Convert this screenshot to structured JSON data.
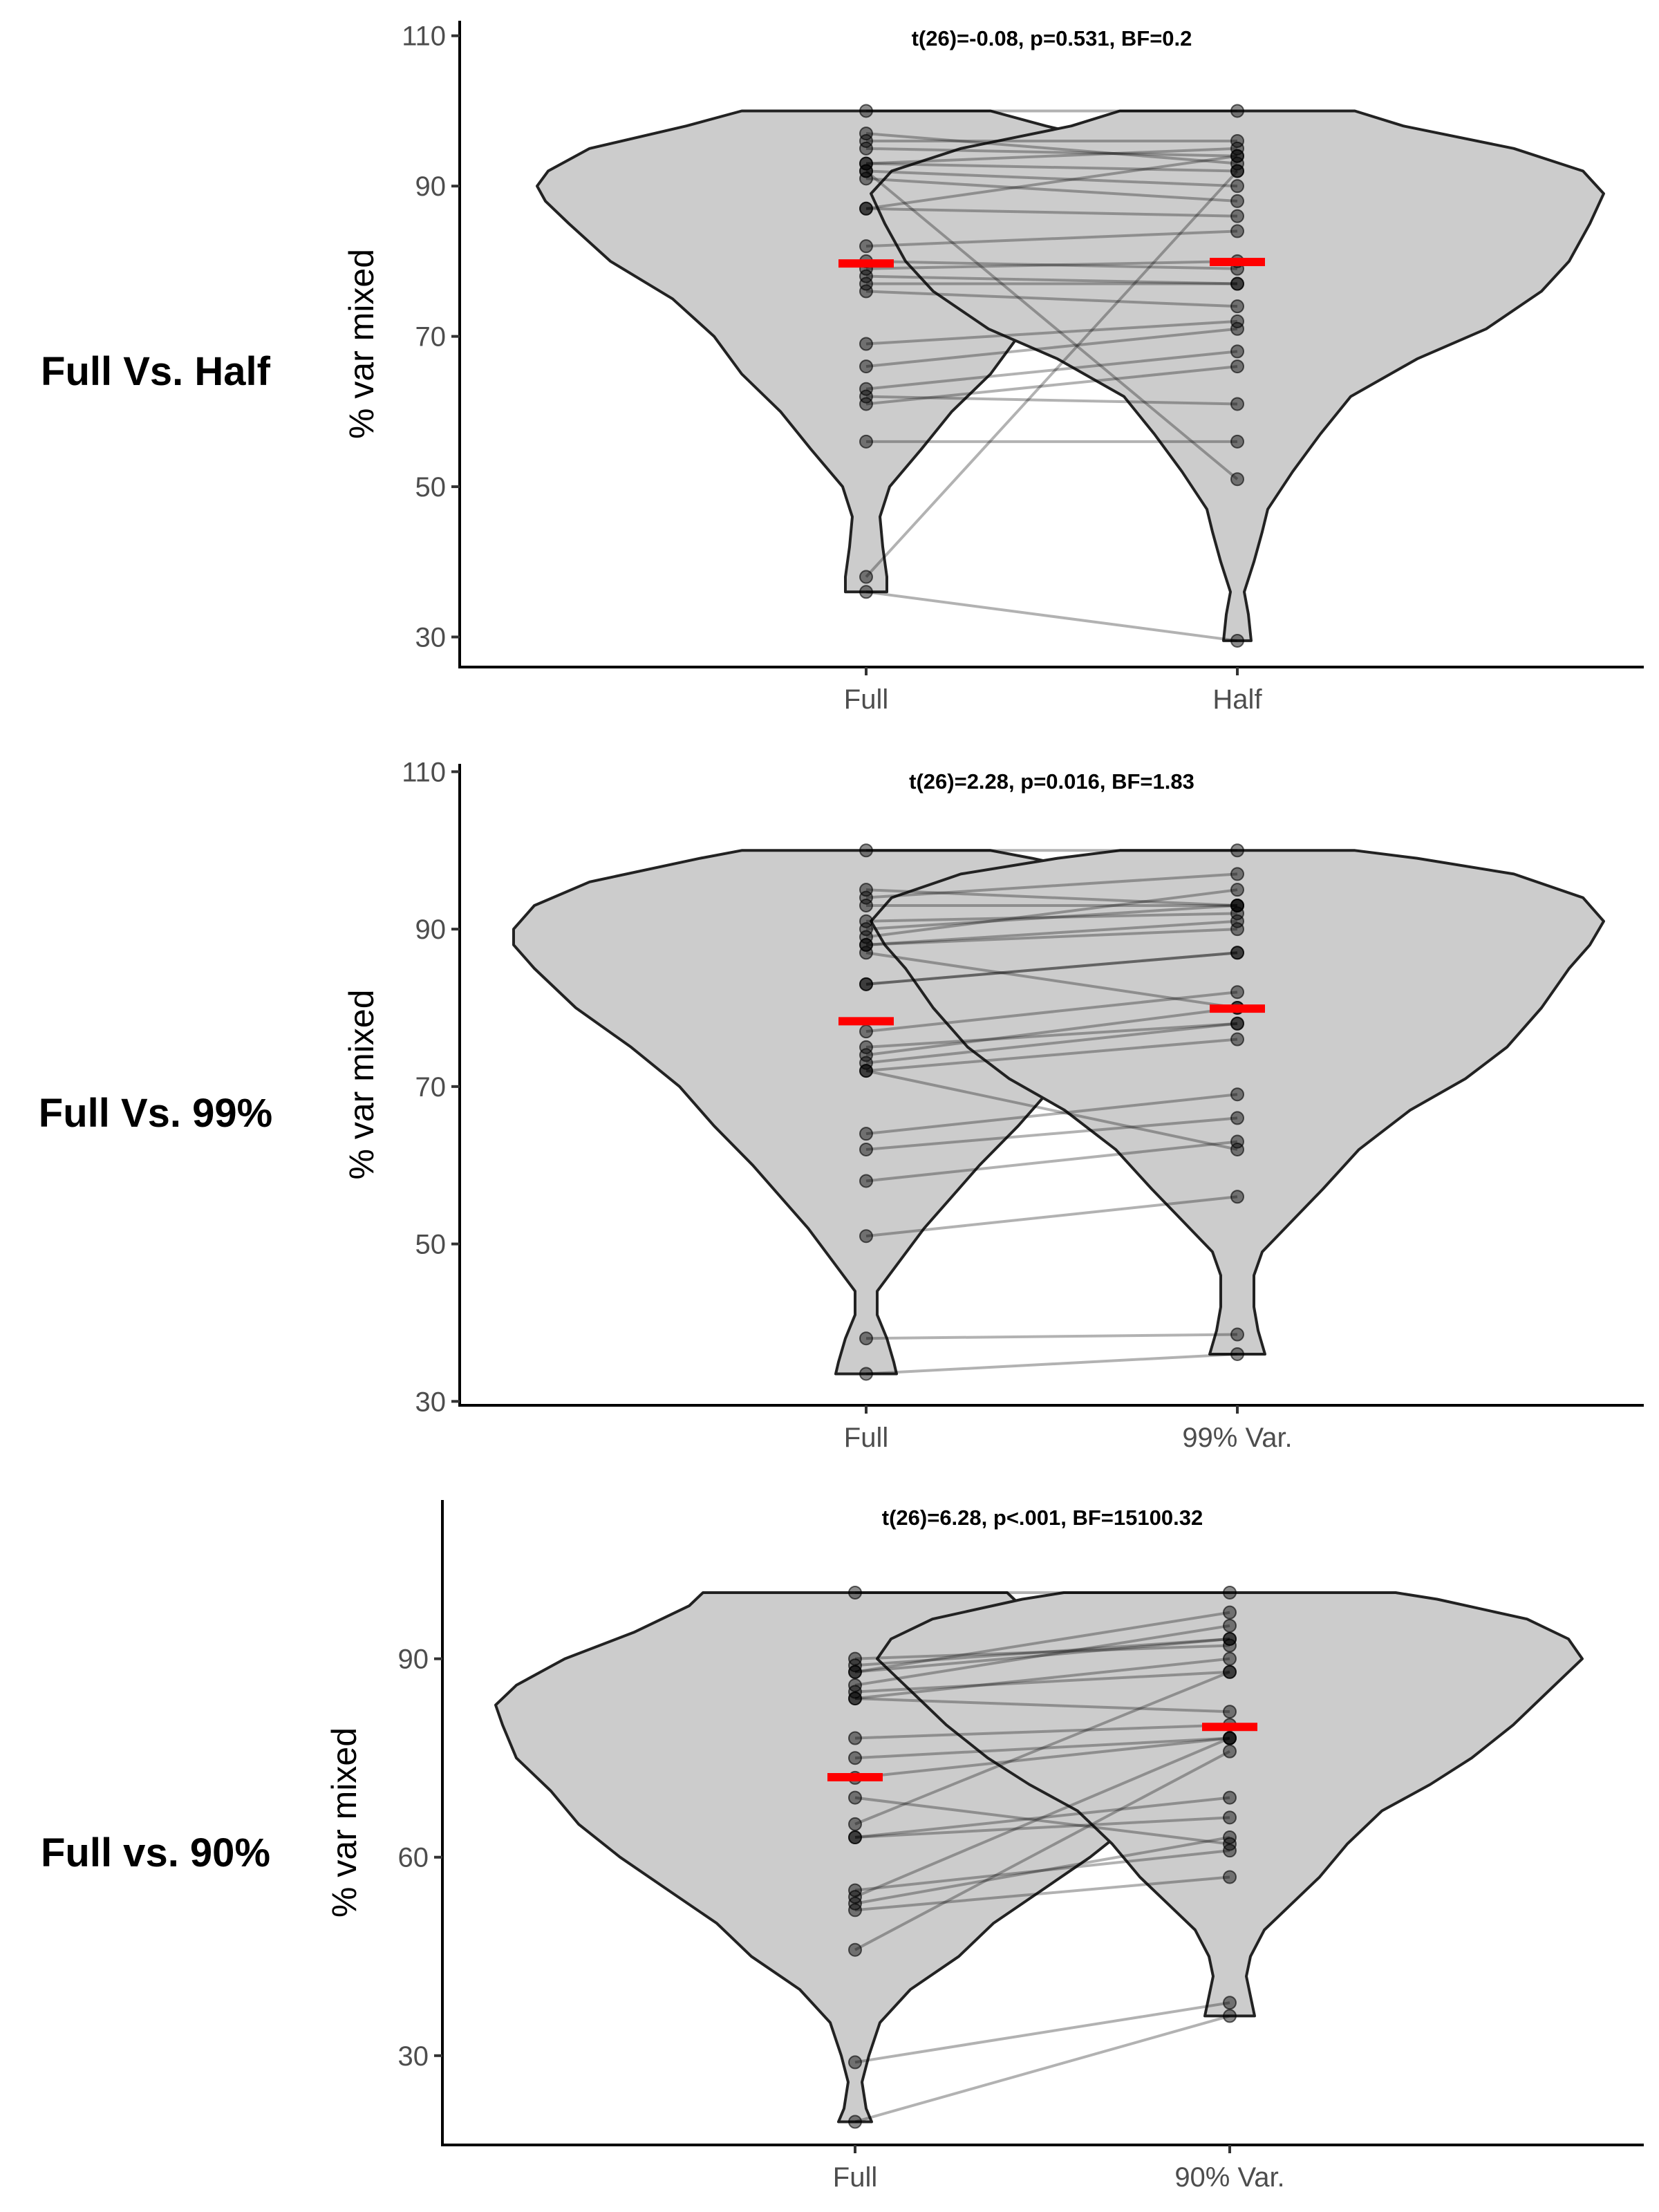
{
  "chart_data": [
    {
      "type": "violin",
      "row_label": "Full Vs. Half",
      "annotation": "t(26)=-0.08, p=0.531, BF=0.2",
      "ylabel": "% var mixed",
      "xlabel": "",
      "categories": [
        "Full",
        "Half"
      ],
      "ylim": [
        26,
        112
      ],
      "yticks": [
        30,
        50,
        70,
        90,
        110
      ],
      "ytick_labels": [
        "30",
        "50",
        "70",
        "90",
        "110"
      ],
      "means": [
        79.7,
        79.9
      ],
      "violin_profiles": [
        [
          [
            36,
            0.15
          ],
          [
            38,
            0.15
          ],
          [
            42,
            0.12
          ],
          [
            46,
            0.1
          ],
          [
            50,
            0.17
          ],
          [
            55,
            0.4
          ],
          [
            60,
            0.62
          ],
          [
            65,
            0.9
          ],
          [
            70,
            1.1
          ],
          [
            75,
            1.4
          ],
          [
            80,
            1.85
          ],
          [
            85,
            2.15
          ],
          [
            88,
            2.32
          ],
          [
            90,
            2.38
          ],
          [
            92,
            2.3
          ],
          [
            95,
            2.0
          ],
          [
            98,
            1.3
          ],
          [
            100,
            0.9
          ]
        ],
        [
          [
            29.5,
            0.1
          ],
          [
            33,
            0.08
          ],
          [
            36,
            0.05
          ],
          [
            40,
            0.12
          ],
          [
            44,
            0.18
          ],
          [
            47,
            0.22
          ],
          [
            52,
            0.4
          ],
          [
            57,
            0.6
          ],
          [
            62,
            0.82
          ],
          [
            67,
            1.3
          ],
          [
            71,
            1.8
          ],
          [
            76,
            2.2
          ],
          [
            80,
            2.4
          ],
          [
            85,
            2.55
          ],
          [
            89,
            2.65
          ],
          [
            92,
            2.5
          ],
          [
            95,
            2.0
          ],
          [
            98,
            1.2
          ],
          [
            100,
            0.85
          ]
        ]
      ],
      "paired_values": [
        [
          100,
          100
        ],
        [
          97,
          93
        ],
        [
          96,
          96
        ],
        [
          95,
          94
        ],
        [
          93,
          95
        ],
        [
          93,
          92
        ],
        [
          92,
          90
        ],
        [
          92,
          51
        ],
        [
          91,
          88
        ],
        [
          87,
          94
        ],
        [
          87,
          86
        ],
        [
          82,
          84
        ],
        [
          80,
          79
        ],
        [
          79,
          80
        ],
        [
          78,
          77
        ],
        [
          77,
          77
        ],
        [
          76,
          74
        ],
        [
          69,
          72
        ],
        [
          66,
          71
        ],
        [
          63,
          68
        ],
        [
          62,
          61
        ],
        [
          61,
          66
        ],
        [
          56,
          56
        ],
        [
          38,
          92
        ],
        [
          36,
          29.5
        ]
      ]
    },
    {
      "type": "violin",
      "row_label": "Full Vs. 99%",
      "annotation": "t(26)=2.28, p=0.016, BF=1.83",
      "ylabel": "% var mixed",
      "xlabel": "",
      "categories": [
        "Full",
        "99% Var."
      ],
      "ylim": [
        29.5,
        111
      ],
      "yticks": [
        30,
        50,
        70,
        90,
        110
      ],
      "ytick_labels": [
        "30",
        "50",
        "70",
        "90",
        "110"
      ],
      "means": [
        78.3,
        79.9
      ],
      "violin_profiles": [
        [
          [
            33.5,
            0.22
          ],
          [
            35,
            0.2
          ],
          [
            38,
            0.15
          ],
          [
            41,
            0.08
          ],
          [
            44,
            0.08
          ],
          [
            48,
            0.25
          ],
          [
            52,
            0.42
          ],
          [
            56,
            0.62
          ],
          [
            60,
            0.82
          ],
          [
            65,
            1.1
          ],
          [
            70,
            1.35
          ],
          [
            75,
            1.7
          ],
          [
            80,
            2.1
          ],
          [
            85,
            2.4
          ],
          [
            88,
            2.55
          ],
          [
            90,
            2.55
          ],
          [
            93,
            2.4
          ],
          [
            96,
            2.0
          ],
          [
            99,
            1.2
          ],
          [
            100,
            0.9
          ]
        ],
        [
          [
            36,
            0.2
          ],
          [
            39,
            0.15
          ],
          [
            42,
            0.12
          ],
          [
            46,
            0.12
          ],
          [
            49,
            0.18
          ],
          [
            53,
            0.4
          ],
          [
            57,
            0.62
          ],
          [
            62,
            0.88
          ],
          [
            67,
            1.25
          ],
          [
            71,
            1.65
          ],
          [
            75,
            1.95
          ],
          [
            80,
            2.2
          ],
          [
            85,
            2.4
          ],
          [
            88,
            2.55
          ],
          [
            91,
            2.65
          ],
          [
            94,
            2.5
          ],
          [
            97,
            2.0
          ],
          [
            99,
            1.3
          ],
          [
            100,
            0.85
          ]
        ]
      ],
      "paired_values": [
        [
          100,
          100
        ],
        [
          95,
          93
        ],
        [
          94,
          97
        ],
        [
          93,
          93
        ],
        [
          91,
          92
        ],
        [
          90,
          93
        ],
        [
          89,
          95
        ],
        [
          88,
          90
        ],
        [
          88,
          91
        ],
        [
          87,
          80
        ],
        [
          83,
          87
        ],
        [
          83,
          87
        ],
        [
          77,
          82
        ],
        [
          75,
          78
        ],
        [
          74,
          80
        ],
        [
          73,
          78
        ],
        [
          72,
          76
        ],
        [
          72,
          62
        ],
        [
          64,
          69
        ],
        [
          62,
          66
        ],
        [
          58,
          63
        ],
        [
          51,
          56
        ],
        [
          38,
          38.5
        ],
        [
          33.5,
          36
        ]
      ]
    },
    {
      "type": "violin",
      "row_label": "Full vs. 90%",
      "annotation": "t(26)=6.28, p<.001, BF=15100.32",
      "ylabel": "% var mixed",
      "xlabel": "",
      "categories": [
        "Full",
        "90% Var."
      ],
      "ylim": [
        16.5,
        114
      ],
      "yticks": [
        30,
        60,
        90
      ],
      "ytick_labels": [
        "30",
        "60",
        "90"
      ],
      "means": [
        72.1,
        79.7
      ],
      "violin_profiles": [
        [
          [
            20,
            0.12
          ],
          [
            22,
            0.08
          ],
          [
            26,
            0.05
          ],
          [
            30,
            0.1
          ],
          [
            35,
            0.18
          ],
          [
            40,
            0.4
          ],
          [
            45,
            0.75
          ],
          [
            50,
            1.0
          ],
          [
            55,
            1.35
          ],
          [
            60,
            1.7
          ],
          [
            65,
            2.0
          ],
          [
            70,
            2.2
          ],
          [
            75,
            2.45
          ],
          [
            80,
            2.55
          ],
          [
            83,
            2.6
          ],
          [
            86,
            2.45
          ],
          [
            90,
            2.1
          ],
          [
            94,
            1.6
          ],
          [
            98,
            1.2
          ],
          [
            100,
            1.1
          ]
        ],
        [
          [
            36,
            0.18
          ],
          [
            39,
            0.15
          ],
          [
            42,
            0.12
          ],
          [
            45,
            0.15
          ],
          [
            49,
            0.25
          ],
          [
            53,
            0.45
          ],
          [
            57,
            0.65
          ],
          [
            62,
            0.85
          ],
          [
            67,
            1.1
          ],
          [
            71,
            1.45
          ],
          [
            75,
            1.75
          ],
          [
            80,
            2.05
          ],
          [
            85,
            2.3
          ],
          [
            88,
            2.45
          ],
          [
            90,
            2.55
          ],
          [
            93,
            2.45
          ],
          [
            96,
            2.15
          ],
          [
            99,
            1.5
          ],
          [
            100,
            1.2
          ]
        ]
      ],
      "paired_values": [
        [
          100,
          100
        ],
        [
          90,
          92
        ],
        [
          89,
          93
        ],
        [
          88,
          93
        ],
        [
          88,
          97
        ],
        [
          86,
          95
        ],
        [
          85,
          88
        ],
        [
          84,
          90
        ],
        [
          84,
          82
        ],
        [
          78,
          80
        ],
        [
          75,
          78
        ],
        [
          72,
          78
        ],
        [
          69,
          62
        ],
        [
          65,
          88
        ],
        [
          63,
          66
        ],
        [
          63,
          69
        ],
        [
          55,
          61
        ],
        [
          54,
          78
        ],
        [
          53,
          63
        ],
        [
          52,
          57
        ],
        [
          46,
          76
        ],
        [
          29,
          38
        ],
        [
          20,
          36
        ]
      ]
    }
  ]
}
